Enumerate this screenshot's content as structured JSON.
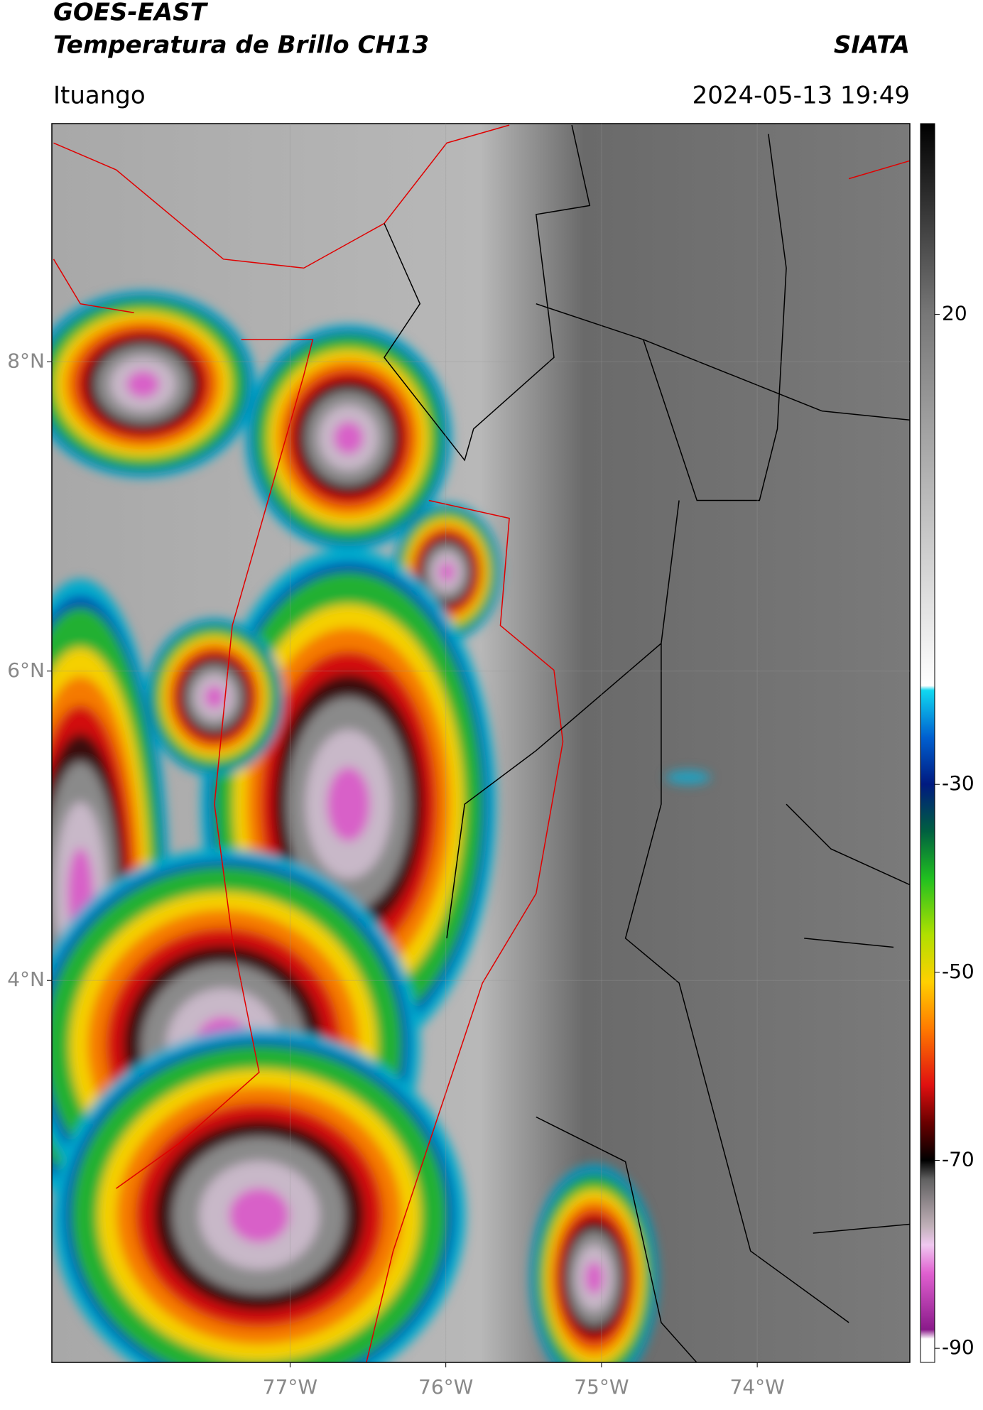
{
  "header": {
    "title": "GOES-EAST",
    "subtitle": "Temperatura de Brillo CH13",
    "source": "SIATA",
    "location": "Ituango",
    "datetime": "2024-05-13 19:49"
  },
  "map": {
    "xlim": [
      -78.53,
      -73.02
    ],
    "ylim": [
      1.53,
      9.54
    ],
    "xticks": [
      {
        "value": -77,
        "label": "77°W"
      },
      {
        "value": -76,
        "label": "76°W"
      },
      {
        "value": -75,
        "label": "75°W"
      },
      {
        "value": -74,
        "label": "74°W"
      }
    ],
    "yticks": [
      {
        "value": 4,
        "label": "4°N"
      },
      {
        "value": 6,
        "label": "6°N"
      },
      {
        "value": 8,
        "label": "8°N"
      }
    ],
    "grid": true
  },
  "colorbar": {
    "lim": [
      -91.5,
      40.3
    ],
    "ticks": [
      -90,
      -70,
      -50,
      -30,
      20
    ],
    "stops": [
      {
        "value": -91.5,
        "color": "#ffffff"
      },
      {
        "value": -89,
        "color": "#ffffff"
      },
      {
        "value": -88,
        "color": "#8a1a8a"
      },
      {
        "value": -82,
        "color": "#e060d0"
      },
      {
        "value": -79,
        "color": "#f0c8f0"
      },
      {
        "value": -77,
        "color": "#c0b0b8"
      },
      {
        "value": -72,
        "color": "#606060"
      },
      {
        "value": -70,
        "color": "#000000"
      },
      {
        "value": -66,
        "color": "#6a0000"
      },
      {
        "value": -62,
        "color": "#e01010"
      },
      {
        "value": -56,
        "color": "#ff7a00"
      },
      {
        "value": -51,
        "color": "#ffd000"
      },
      {
        "value": -46,
        "color": "#b0e000"
      },
      {
        "value": -40,
        "color": "#20c020"
      },
      {
        "value": -35,
        "color": "#006040"
      },
      {
        "value": -30,
        "color": "#001a80"
      },
      {
        "value": -25,
        "color": "#0060d0"
      },
      {
        "value": -20,
        "color": "#10d8f0"
      },
      {
        "value": -19.5,
        "color": "#ffffff"
      },
      {
        "value": 20,
        "color": "#777777"
      },
      {
        "value": 40.3,
        "color": "#000000"
      }
    ]
  }
}
